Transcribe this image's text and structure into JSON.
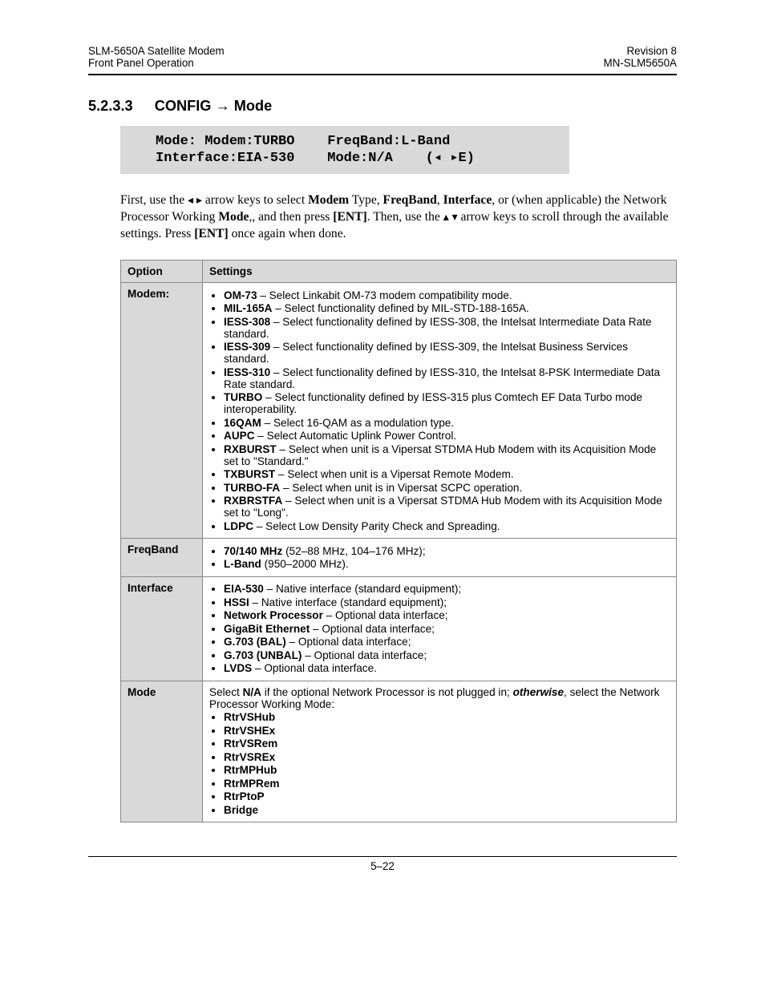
{
  "header": {
    "left_line1": "SLM-5650A Satellite Modem",
    "left_line2": "Front Panel Operation",
    "right_line1": "Revision 8",
    "right_line2": "MN-SLM5650A"
  },
  "section": {
    "number": "5.2.3.3",
    "title": "CONFIG → Mode"
  },
  "lcd": {
    "line1_left": "Mode: Modem:TURBO",
    "line1_right": "FreqBand:L-Band",
    "line2_left": "Interface:EIA-530",
    "line2_right_a": "Mode:N/A",
    "line2_right_b": "(◂ ▸E)"
  },
  "paragraph": {
    "p1_a": "First, use the ",
    "p1_b": " arrow keys to select ",
    "modem": "Modem",
    "p1_c": " Type, ",
    "freqband": "FreqBand",
    "p1_d": ", ",
    "interface": "Interface",
    "p1_e": ", or (when applicable) the Network Processor Working ",
    "mode": "Mode",
    "p1_f": ",, and then press ",
    "ent": "[ENT]",
    "p1_g": ". Then, use the ",
    "p1_h": " arrow keys to scroll through the available settings. Press ",
    "p1_i": " once again when done.",
    "lr_arrows": "◂ ▸",
    "ud_arrows": "▴ ▾"
  },
  "table_headers": {
    "option": "Option",
    "settings": "Settings"
  },
  "rows": {
    "modem": {
      "name": "Modem:",
      "items": [
        {
          "b": "OM-73",
          "t": " – Select Linkabit OM-73 modem compatibility mode."
        },
        {
          "b": "MIL-165A",
          "t": " – Select functionality defined by MIL-STD-188-165A."
        },
        {
          "b": "IESS-308",
          "t": " – Select functionality defined by IESS-308, the Intelsat Intermediate Data Rate standard."
        },
        {
          "b": "IESS-309",
          "t": " – Select functionality defined by IESS-309, the Intelsat Business Services standard."
        },
        {
          "b": "IESS-310",
          "t": " – Select functionality defined by IESS-310, the Intelsat 8-PSK Intermediate Data Rate standard."
        },
        {
          "b": "TURBO",
          "t": " – Select functionality defined by IESS-315 plus Comtech EF Data Turbo mode interoperability."
        },
        {
          "b": "16QAM",
          "t": " – Select 16-QAM as a modulation type."
        },
        {
          "b": "AUPC",
          "t": " – Select  Automatic Uplink Power Control."
        },
        {
          "b": "RXBURST",
          "t": " – Select when unit is a Vipersat STDMA Hub Modem with its Acquisition Mode set to \"Standard.\""
        },
        {
          "b": "TXBURST",
          "t": " – Select when unit is a Vipersat Remote Modem."
        },
        {
          "b": "TURBO-FA",
          "t": " – Select when unit is in Vipersat SCPC operation."
        },
        {
          "b": "RXBRSTFA",
          "t": " – Select when unit is a Vipersat STDMA Hub Modem with its Acquisition Mode set to \"Long\"."
        },
        {
          "b": "LDPC",
          "t": " – Select Low Density Parity Check and Spreading."
        }
      ]
    },
    "freqband": {
      "name": "FreqBand",
      "items": [
        {
          "b": "70/140 MHz",
          "t": " (52–88 MHz, 104–176 MHz);"
        },
        {
          "b": "L-Band",
          "t": " (950–2000 MHz)."
        }
      ]
    },
    "interface": {
      "name": "Interface",
      "items": [
        {
          "b": "EIA-530",
          "t": " – Native interface (standard equipment);"
        },
        {
          "b": "HSSI",
          "t": " –  Native interface (standard equipment);"
        },
        {
          "b": "Network Processor",
          "t": " –  Optional data interface;"
        },
        {
          "b": "GigaBit Ethernet",
          "t": " –  Optional data interface;"
        },
        {
          "b": "G.703 (BAL)",
          "t": " –  Optional data interface;"
        },
        {
          "b": "G.703 (UNBAL)",
          "t": " –  Optional data interface;"
        },
        {
          "b": "LVDS",
          "t": " – Optional data interface."
        }
      ]
    },
    "mode": {
      "name": "Mode",
      "intro_a": "Select ",
      "intro_na": "N/A",
      "intro_b": " if the optional Network Processor is not plugged in; ",
      "intro_otherwise": "otherwise",
      "intro_c": ", select the Network Processor Working Mode:",
      "items": [
        {
          "b": "RtrVSHub",
          "t": ""
        },
        {
          "b": "RtrVSHEx",
          "t": ""
        },
        {
          "b": "RtrVSRem",
          "t": ""
        },
        {
          "b": "RtrVSREx",
          "t": ""
        },
        {
          "b": "RtrMPHub",
          "t": ""
        },
        {
          "b": "RtrMPRem",
          "t": ""
        },
        {
          "b": "RtrPtoP",
          "t": ""
        },
        {
          "b": "Bridge",
          "t": ""
        }
      ]
    }
  },
  "footer": {
    "page": "5–22"
  }
}
